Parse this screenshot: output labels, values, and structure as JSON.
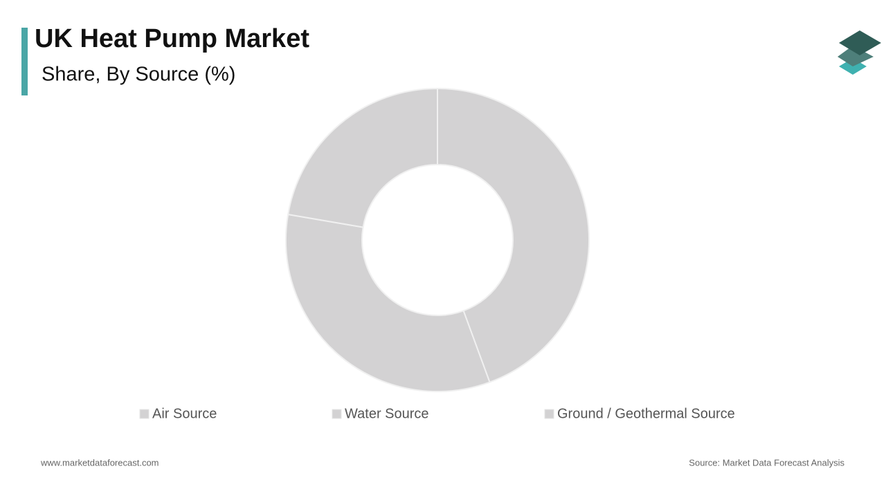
{
  "chart_data": {
    "type": "pie",
    "title": "UK Heat Pump Market",
    "subtitle": "Share, By Source (%)",
    "categories": [
      "Air Source",
      "Water Source",
      "Ground / Geothermal Source"
    ],
    "values": [
      44.4,
      33.3,
      22.3
    ],
    "colors": [
      "#d3d2d3",
      "#d3d2d3",
      "#d3d2d3"
    ],
    "donut": true,
    "legend": "bottom"
  },
  "footer": {
    "website": "www.marketdataforecast.com",
    "source": "Source: Market Data Forecast Analysis"
  }
}
